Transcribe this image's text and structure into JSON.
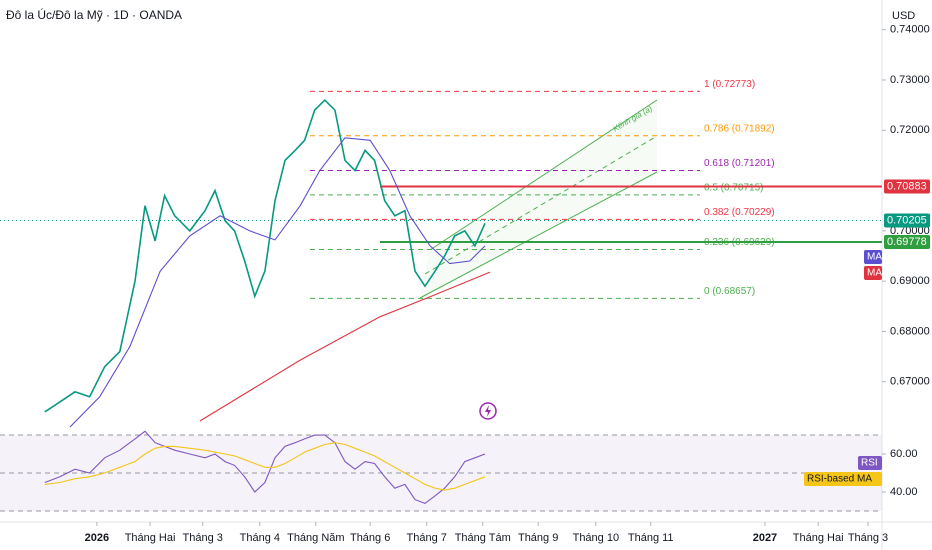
{
  "header": {
    "title": "Đô la Úc/Đô la Mỹ · 1D · OANDA",
    "currency": "USD"
  },
  "chart_data": [
    {
      "type": "line",
      "xlim": [
        -1.73,
        14.02
      ],
      "ylim": [
        0.6614,
        0.7459
      ],
      "yticks": [
        {
          "value": 0.74,
          "label": "0.74000"
        },
        {
          "value": 0.73,
          "label": "0.73000"
        },
        {
          "value": 0.72,
          "label": "0.72000"
        },
        {
          "value": 0.7,
          "label": "0.70000"
        },
        {
          "value": 0.69,
          "label": "0.69000"
        },
        {
          "value": 0.68,
          "label": "0.68000"
        },
        {
          "value": 0.67,
          "label": "0.67000"
        }
      ],
      "series": [
        {
          "color": "#089981",
          "x": [
            -0.93,
            -0.66,
            -0.39,
            -0.13,
            0.14,
            0.41,
            0.68,
            0.86,
            1.04,
            1.21,
            1.39,
            1.66,
            1.93,
            2.11,
            2.29,
            2.46,
            2.64,
            2.82,
            3.0,
            3.18,
            3.36,
            3.54,
            3.71,
            3.89,
            4.07,
            4.25,
            4.43,
            4.61,
            4.79,
            4.96,
            5.14,
            5.32,
            5.5,
            5.68,
            5.86,
            6.04,
            6.21,
            6.39,
            6.57,
            6.75,
            6.93
          ],
          "values": [
            0.664,
            0.666,
            0.668,
            0.667,
            0.673,
            0.676,
            0.69,
            0.705,
            0.698,
            0.707,
            0.703,
            0.7,
            0.704,
            0.708,
            0.702,
            0.7,
            0.694,
            0.687,
            0.692,
            0.706,
            0.714,
            0.716,
            0.718,
            0.724,
            0.726,
            0.724,
            0.714,
            0.712,
            0.716,
            0.714,
            0.706,
            0.703,
            0.704,
            0.692,
            0.689,
            0.692,
            0.695,
            0.699,
            0.7,
            0.697,
            0.7015
          ]
        },
        {
          "name": "MA",
          "color": "#5b4fcf",
          "x": [
            -0.48,
            0.05,
            0.59,
            1.13,
            1.66,
            2.2,
            2.73,
            3.18,
            3.63,
            3.98,
            4.43,
            4.88,
            5.23,
            5.59,
            5.95,
            6.3,
            6.66,
            6.93
          ],
          "values": [
            0.661,
            0.667,
            0.677,
            0.692,
            0.699,
            0.703,
            0.7,
            0.6982,
            0.705,
            0.712,
            0.7185,
            0.718,
            0.712,
            0.703,
            0.697,
            0.6935,
            0.694,
            0.697
          ]
        },
        {
          "name": "MA",
          "color": "#e03340",
          "x": [
            1.84,
            3.63,
            5.05,
            5.95,
            7.02
          ],
          "values": [
            0.6622,
            0.6743,
            0.6829,
            0.6869,
            0.6918
          ]
        }
      ],
      "levels": [
        {
          "label": "1 (0.72773)",
          "value": 0.72773,
          "color": "#f23645"
        },
        {
          "label": "0.786 (0.71892)",
          "value": 0.71892,
          "color": "#ff9800"
        },
        {
          "label": "0.618 (0.71201)",
          "value": 0.71201,
          "color": "#9c27b0"
        },
        {
          "label": "0.5 (0.70715)",
          "value": 0.70715,
          "color": "#4caf50"
        },
        {
          "label": "0.382 (0.70229)",
          "value": 0.70229,
          "color": "#f23645"
        },
        {
          "label": "0.236 (0.69629)",
          "value": 0.69629,
          "color": "#4caf50"
        },
        {
          "label": "0 (0.68657)",
          "value": 0.68657,
          "color": "#4caf50"
        }
      ],
      "price_tags": [
        {
          "value": 0.70883,
          "color": "#e03340"
        },
        {
          "value": 0.70205,
          "color": "#089981"
        },
        {
          "value": 0.69778,
          "color": "#2e9e3e"
        }
      ],
      "annotation": "Kênh giá (a)"
    },
    {
      "type": "line",
      "xlim": [
        -1.73,
        14.02
      ],
      "ylim": [
        26.3,
        75.3
      ],
      "yticks": [
        {
          "value": 60,
          "label": "60.00"
        },
        {
          "value": 40,
          "label": "40.00"
        }
      ],
      "bands": [
        70,
        50,
        30
      ],
      "xticks": [
        {
          "value": 0,
          "label": "2026"
        },
        {
          "value": 0.95,
          "label": "Tháng Hai"
        },
        {
          "value": 1.89,
          "label": "Tháng 3"
        },
        {
          "value": 2.91,
          "label": "Tháng 4"
        },
        {
          "value": 3.91,
          "label": "Tháng Năm"
        },
        {
          "value": 4.88,
          "label": "Tháng 6"
        },
        {
          "value": 5.89,
          "label": "Tháng 7"
        },
        {
          "value": 6.89,
          "label": "Tháng Tám"
        },
        {
          "value": 7.88,
          "label": "Tháng 9"
        },
        {
          "value": 8.91,
          "label": "Tháng 10"
        },
        {
          "value": 9.89,
          "label": "Tháng 11"
        },
        {
          "value": 11.93,
          "label": "2027"
        },
        {
          "value": 12.88,
          "label": "Tháng Hai"
        },
        {
          "value": 13.77,
          "label": "Tháng 3"
        }
      ],
      "series": [
        {
          "name": "RSI",
          "color": "#7e57c2",
          "x": [
            -0.93,
            -0.66,
            -0.39,
            -0.13,
            0.14,
            0.41,
            0.68,
            0.86,
            1.04,
            1.21,
            1.39,
            1.66,
            1.93,
            2.11,
            2.29,
            2.46,
            2.64,
            2.82,
            3.0,
            3.18,
            3.36,
            3.54,
            3.71,
            3.89,
            4.07,
            4.25,
            4.43,
            4.61,
            4.79,
            4.96,
            5.14,
            5.32,
            5.5,
            5.68,
            5.86,
            6.04,
            6.21,
            6.39,
            6.57,
            6.75,
            6.93
          ],
          "values": [
            45,
            48,
            52,
            50,
            58,
            62,
            68,
            72,
            66,
            64,
            62,
            60,
            58,
            60,
            56,
            54,
            48,
            40,
            45,
            58,
            64,
            66,
            68,
            70,
            70,
            66,
            56,
            52,
            56,
            55,
            48,
            42,
            44,
            36,
            34,
            38,
            42,
            48,
            56,
            58,
            60
          ]
        },
        {
          "name": "RSI-based MA",
          "color": "#f5c518",
          "x": [
            -0.93,
            -0.66,
            -0.39,
            -0.13,
            0.14,
            0.41,
            0.68,
            0.86,
            1.04,
            1.21,
            1.39,
            1.66,
            1.93,
            2.11,
            2.29,
            2.46,
            2.64,
            2.82,
            3.0,
            3.18,
            3.36,
            3.54,
            3.71,
            3.89,
            4.07,
            4.25,
            4.43,
            4.61,
            4.79,
            4.96,
            5.14,
            5.32,
            5.5,
            5.68,
            5.86,
            6.04,
            6.21,
            6.39,
            6.57,
            6.75,
            6.93
          ],
          "values": [
            44,
            45,
            47,
            48,
            50,
            53,
            56,
            60,
            63,
            64,
            64,
            63,
            62,
            61,
            60,
            59,
            57,
            55,
            53,
            53,
            55,
            58,
            61,
            63,
            65,
            66,
            65,
            63,
            61,
            59,
            56,
            53,
            50,
            47,
            44,
            42,
            41,
            42,
            44,
            46,
            48
          ]
        }
      ]
    }
  ]
}
